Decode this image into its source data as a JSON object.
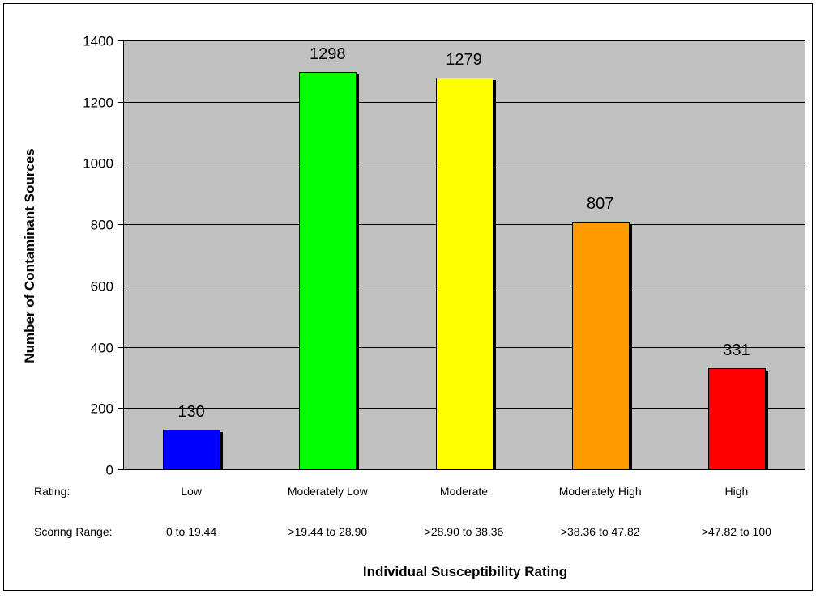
{
  "chart_data": {
    "type": "bar",
    "categories": [
      "Low",
      "Moderately Low",
      "Moderate",
      "Moderately High",
      "High"
    ],
    "values": [
      130,
      1298,
      1279,
      807,
      331
    ],
    "data_labels": [
      "130",
      "1298",
      "1279",
      "807",
      "331"
    ],
    "scoring_ranges": [
      "0 to 19.44",
      ">19.44 to 28.90",
      ">28.90 to 38.36",
      ">38.36 to 47.82",
      ">47.82 to 100"
    ],
    "row_labels": {
      "rating": "Rating:",
      "scoring_range": "Scoring Range:"
    },
    "bar_colors": [
      "#0000ff",
      "#00ff00",
      "#ffff00",
      "#ff9900",
      "#ff0000"
    ],
    "title": "",
    "xlabel": "Individual Susceptibility Rating",
    "ylabel": "Number of Contaminant Sources",
    "ylim": [
      0,
      1400
    ],
    "yticks": [
      0,
      200,
      400,
      600,
      800,
      1000,
      1200,
      1400
    ],
    "ytick_labels": [
      "0",
      "200",
      "400",
      "600",
      "800",
      "1000",
      "1200",
      "1400"
    ],
    "grid": true,
    "legend": "none",
    "plot_background": "#c0c0c0"
  }
}
